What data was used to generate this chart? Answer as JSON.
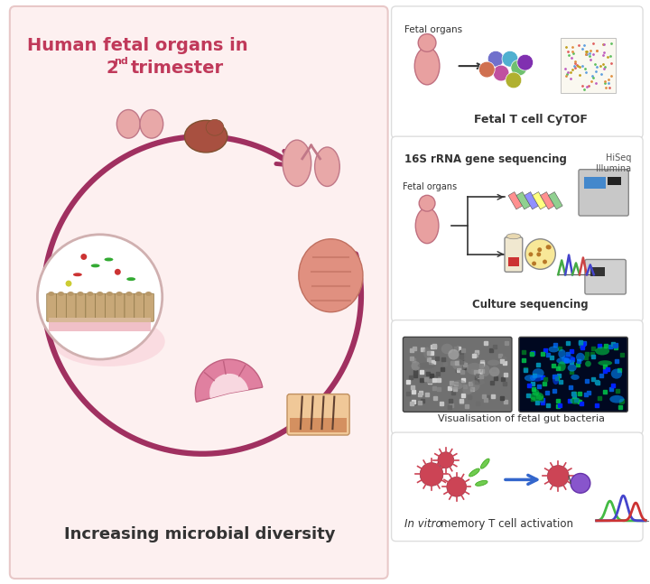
{
  "bg_color": "#fdf5f5",
  "left_panel": {
    "bg_color": "#fdf0f0",
    "border_color": "#e8c8c8",
    "title_line1": "Human fetal organs in",
    "title_line2": "2",
    "title_line2_sup": "nd",
    "title_line2_rest": " trimester",
    "title_color": "#c0395a",
    "bottom_text": "Increasing microbial diversity",
    "bottom_text_color": "#333333",
    "arrow_color": "#a03060",
    "circle_color": "#e8a0b0"
  },
  "right_panels": [
    {
      "id": "cytof",
      "title": "Fetal T cell CyTOF",
      "label": "Fetal organs",
      "bg_color": "#ffffff",
      "border_color": "#ddcccc"
    },
    {
      "id": "sequencing",
      "title1": "16S rRNA gene sequencing",
      "title2": "HiSeq\nIllumina",
      "label": "Fetal organs",
      "label2": "Culture sequencing",
      "bg_color": "#ffffff",
      "border_color": "#ddcccc"
    },
    {
      "id": "visualisation",
      "title": "Visualisation of fetal gut bacteria",
      "bg_color": "#ffffff",
      "border_color": "#ddcccc"
    },
    {
      "id": "invitro",
      "title_italic": "In vitro",
      "title_rest": " memory T cell activation",
      "bg_color": "#ffffff",
      "border_color": "#ddcccc"
    }
  ],
  "overall_bg": "#ffffff"
}
